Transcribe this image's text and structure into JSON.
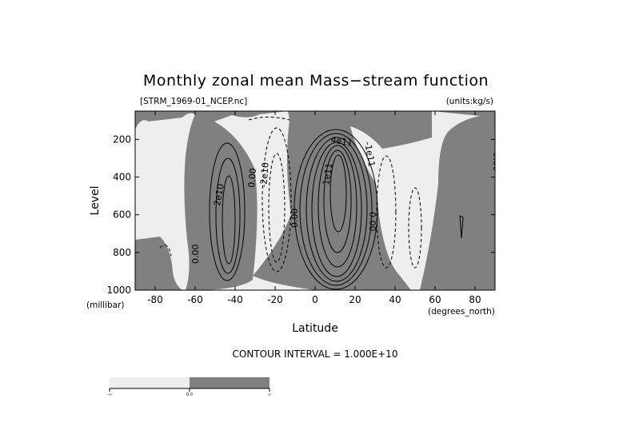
{
  "chart_data": {
    "type": "contour",
    "title": "Monthly zonal mean Mass−stream function",
    "subtitle_left": "[STRM_1969-01_NCEP.nc]",
    "subtitle_right": "(units:kg/s)",
    "xlabel": "Latitude",
    "ylabel": "Level",
    "x_unit_label": "(degrees_north)",
    "y_unit_label": "(millibar)",
    "xlim": [
      -90,
      90
    ],
    "ylim": [
      1000,
      50
    ],
    "y_reversed": true,
    "x_ticks": [
      -80,
      -60,
      -40,
      -20,
      0,
      20,
      40,
      60,
      80
    ],
    "y_ticks": [
      200,
      400,
      600,
      800,
      1000
    ],
    "contour_interval_text": "CONTOUR INTERVAL = 1.000E+10",
    "contour_interval": 10000000000,
    "fill_colors": {
      "negative": "#eeeeee",
      "positive": "#808080"
    },
    "line_style": {
      "positive": "solid",
      "negative": "dashed"
    },
    "contour_labels": [
      "0.00",
      "2e10",
      "0.00",
      "-2e10",
      "0.00",
      "4e11",
      "-1e11",
      "1e11",
      "0.00",
      "0.00",
      "0.00"
    ],
    "colorbar": {
      "segments": [
        "#eeeeee",
        "#808080"
      ],
      "tick_labels": [
        "-∞",
        "0.0",
        "∞"
      ]
    }
  }
}
